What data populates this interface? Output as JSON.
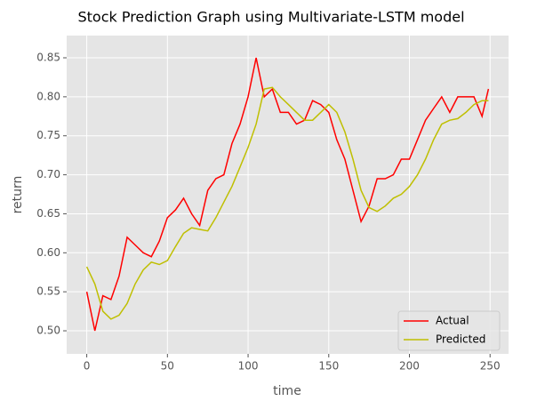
{
  "chart_data": {
    "type": "line",
    "title": "Stock Prediction Graph using Multivariate-LSTM model",
    "xlabel": "time",
    "ylabel": "return",
    "x": [
      0,
      5,
      10,
      15,
      20,
      25,
      30,
      35,
      40,
      45,
      50,
      55,
      60,
      65,
      70,
      75,
      80,
      85,
      90,
      95,
      100,
      105,
      110,
      115,
      120,
      125,
      130,
      135,
      140,
      145,
      150,
      155,
      160,
      165,
      170,
      175,
      180,
      185,
      190,
      195,
      200,
      205,
      210,
      215,
      220,
      225,
      230,
      235,
      240,
      245,
      249
    ],
    "series": [
      {
        "name": "Actual",
        "color": "#ff0000",
        "values": [
          0.55,
          0.5,
          0.545,
          0.54,
          0.57,
          0.62,
          0.61,
          0.6,
          0.595,
          0.615,
          0.645,
          0.655,
          0.67,
          0.65,
          0.635,
          0.68,
          0.695,
          0.7,
          0.74,
          0.765,
          0.8,
          0.85,
          0.8,
          0.81,
          0.78,
          0.78,
          0.765,
          0.77,
          0.795,
          0.79,
          0.78,
          0.745,
          0.72,
          0.68,
          0.64,
          0.66,
          0.695,
          0.695,
          0.7,
          0.72,
          0.72,
          0.745,
          0.77,
          0.785,
          0.8,
          0.78,
          0.8,
          0.8,
          0.8,
          0.775,
          0.81
        ]
      },
      {
        "name": "Predicted",
        "color": "#bfbf00",
        "values": [
          0.582,
          0.56,
          0.525,
          0.515,
          0.52,
          0.535,
          0.56,
          0.578,
          0.588,
          0.585,
          0.59,
          0.608,
          0.625,
          0.632,
          0.63,
          0.628,
          0.645,
          0.665,
          0.685,
          0.71,
          0.735,
          0.765,
          0.81,
          0.812,
          0.8,
          0.79,
          0.78,
          0.77,
          0.77,
          0.78,
          0.79,
          0.78,
          0.755,
          0.72,
          0.68,
          0.658,
          0.653,
          0.66,
          0.67,
          0.675,
          0.685,
          0.7,
          0.72,
          0.745,
          0.765,
          0.77,
          0.772,
          0.78,
          0.79,
          0.795,
          0.795
        ]
      }
    ],
    "xlim": [
      -12.45,
      261.45
    ],
    "ylim": [
      0.4704,
      0.8785
    ],
    "xticks": [
      0,
      50,
      100,
      150,
      200,
      250
    ],
    "yticks": [
      {
        "value": 0.5,
        "label": "0.50"
      },
      0.55,
      {
        "value": 0.6,
        "label": "0.60"
      },
      0.65,
      {
        "value": 0.7,
        "label": "0.70"
      },
      0.75,
      {
        "value": 0.8,
        "label": "0.80"
      },
      0.85
    ],
    "grid": true,
    "legend": "lower right"
  }
}
